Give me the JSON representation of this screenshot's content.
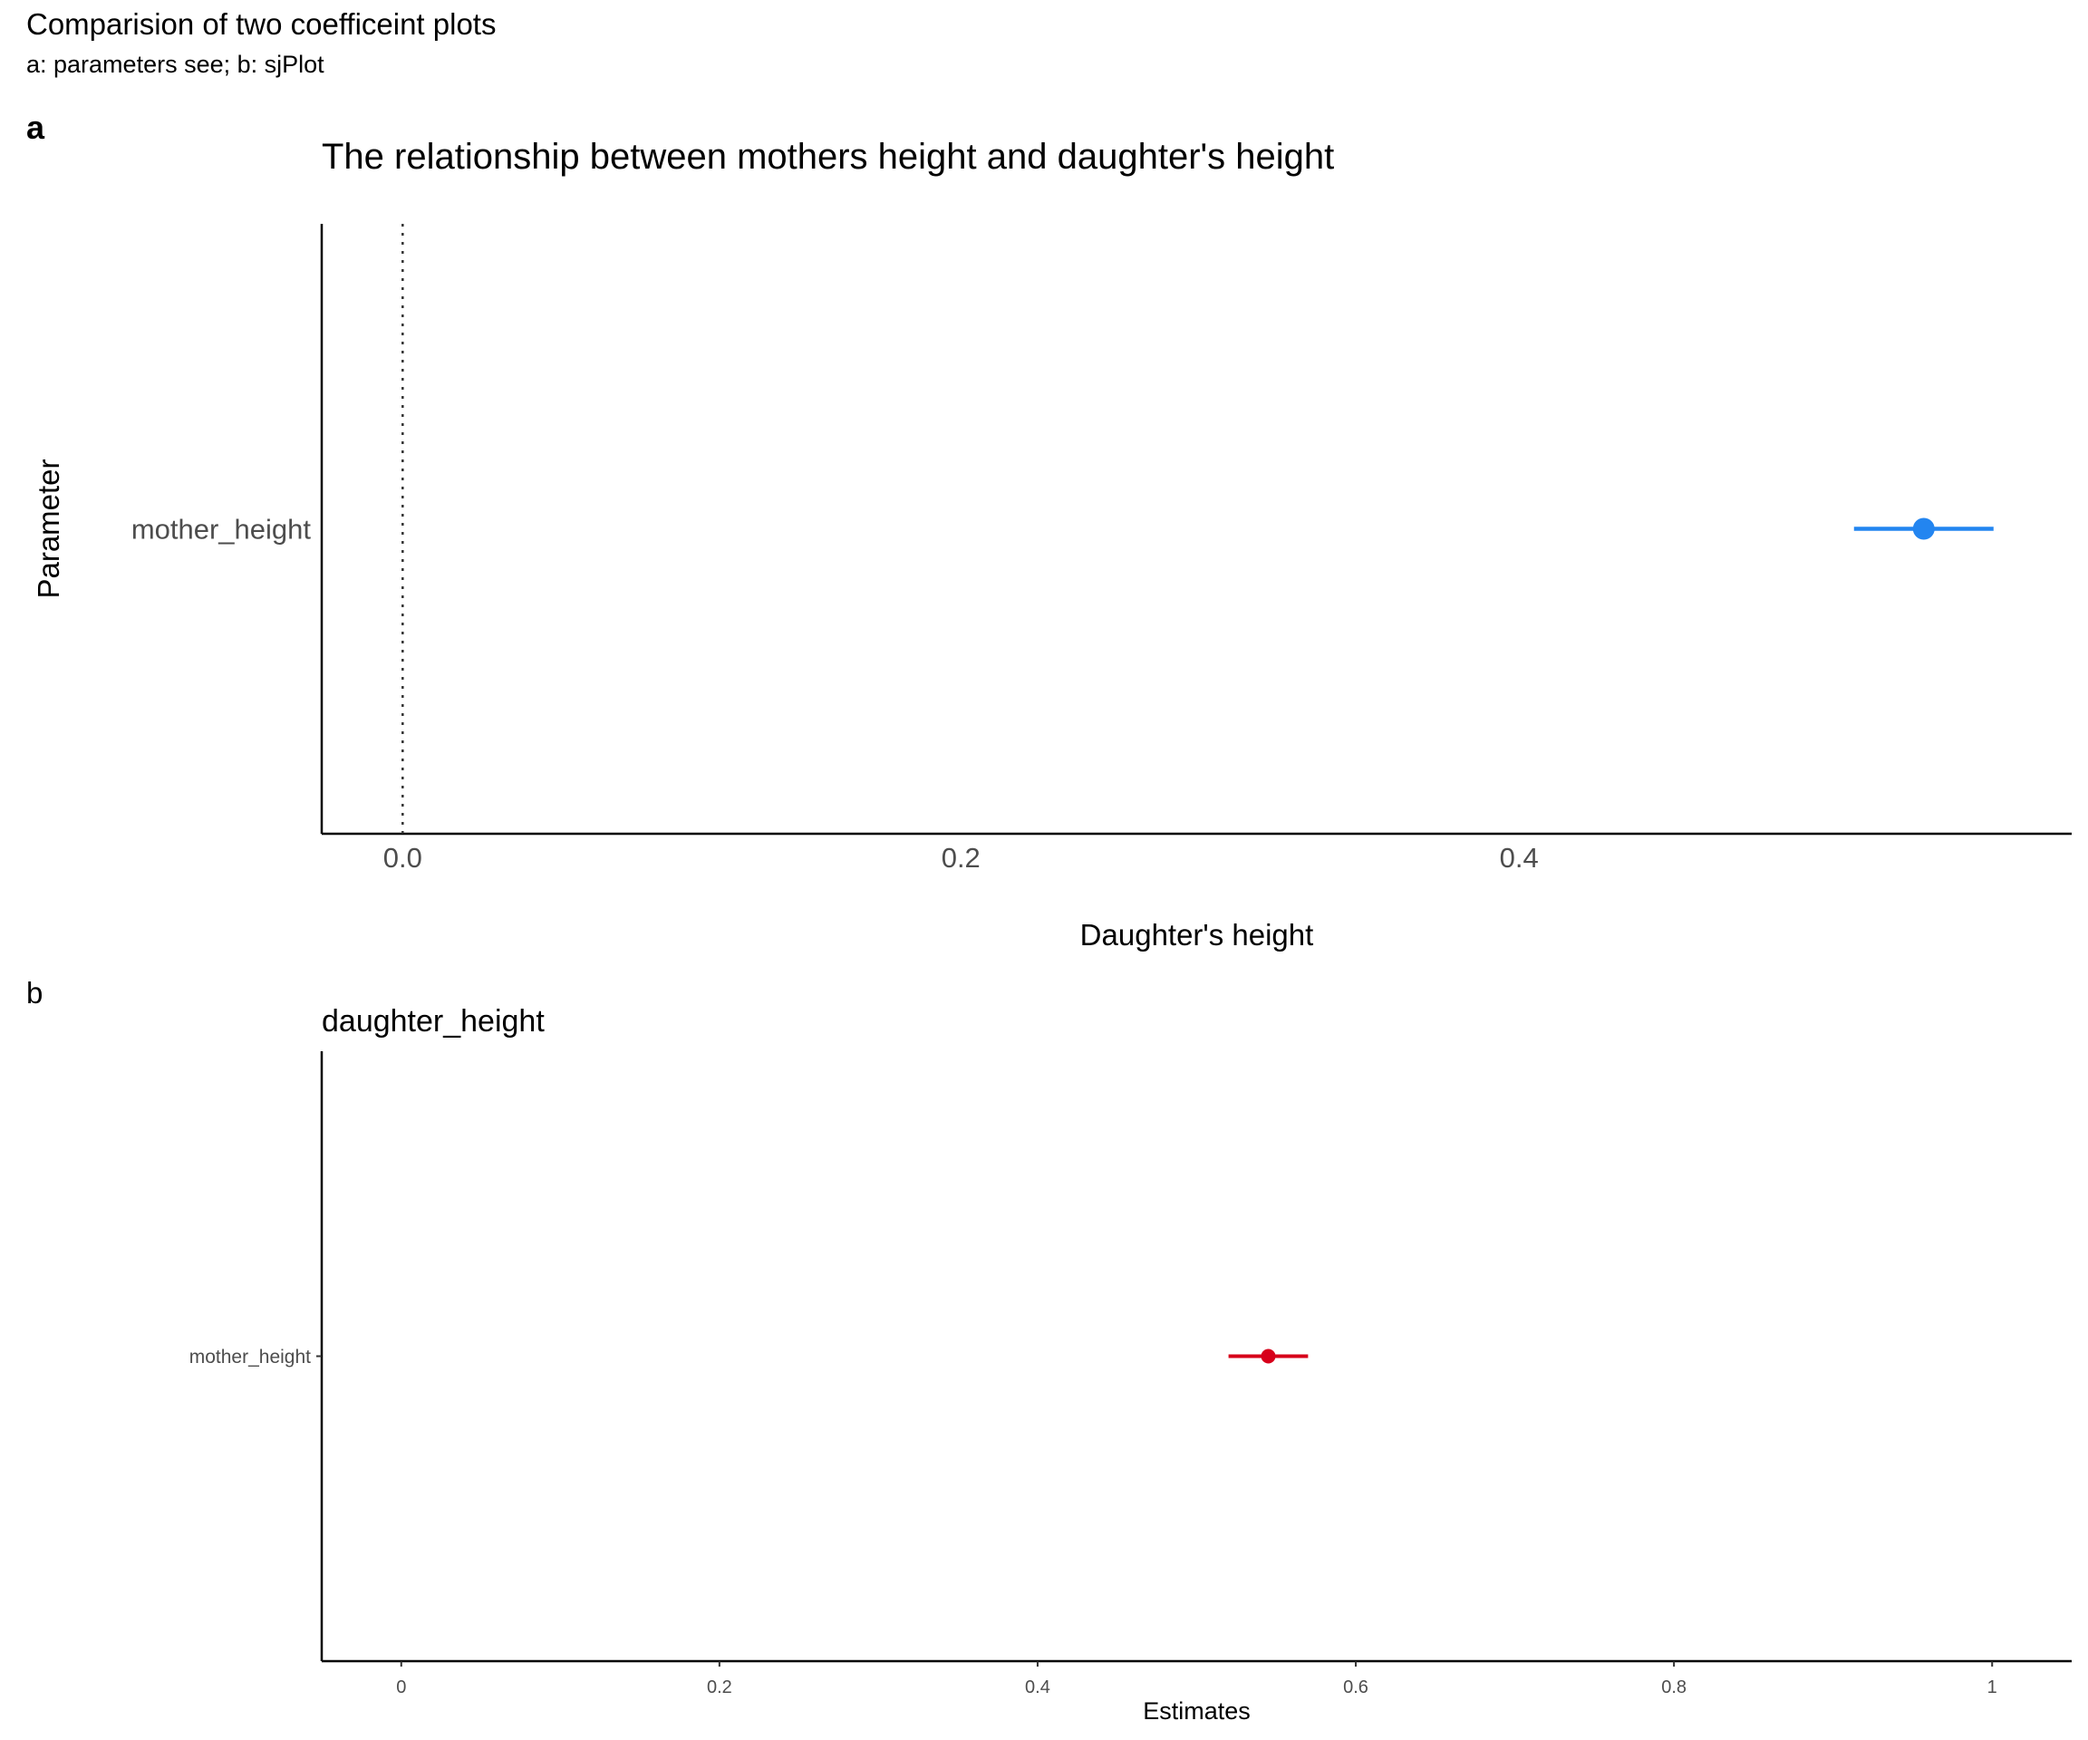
{
  "figure": {
    "title": "Comparision of two coefficeint plots",
    "subtitle": "a: parameters see; b: sjPlot"
  },
  "chart_data": [
    {
      "tag": "a",
      "type": "scatter",
      "title": "The relationship between mothers height and daughter's height",
      "xlabel": "Daughter's height",
      "ylabel": "Parameter",
      "categories": [
        "mother_height"
      ],
      "estimates": [
        0.545
      ],
      "ci_low": [
        0.52
      ],
      "ci_high": [
        0.57
      ],
      "xlim": [
        -0.029,
        0.598
      ],
      "xticks": [
        0.0,
        0.2,
        0.4
      ],
      "xtick_labels": [
        "0.0",
        "0.2",
        "0.4"
      ],
      "reference_line": 0,
      "grid": false,
      "color": "#2385f0"
    },
    {
      "tag": "b",
      "type": "scatter",
      "title": "daughter_height",
      "xlabel": "Estimates",
      "ylabel": "",
      "categories": [
        "mother_height"
      ],
      "estimates": [
        0.545
      ],
      "ci_low": [
        0.52
      ],
      "ci_high": [
        0.57
      ],
      "xlim": [
        -0.05,
        1.05
      ],
      "xticks": [
        0,
        0.2,
        0.4,
        0.6,
        0.8,
        1
      ],
      "xtick_labels": [
        "0",
        "0.2",
        "0.4",
        "0.6",
        "0.8",
        "1"
      ],
      "grid": false,
      "color": "#d7001a"
    }
  ]
}
